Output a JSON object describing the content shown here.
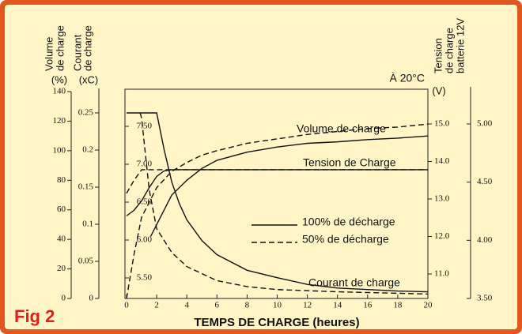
{
  "chart_data": {
    "type": "line",
    "figure_label": "Fig 2",
    "xlabel": "TEMPS DE CHARGE (heures)",
    "annotation_temp": "À 20°C",
    "xlim": [
      0,
      20
    ],
    "xticks": [
      0,
      2,
      4,
      6,
      8,
      10,
      12,
      14,
      16,
      18,
      20
    ],
    "axes": [
      {
        "id": "volume",
        "title_lines": [
          "Volume",
          "de charge"
        ],
        "unit": "(%)",
        "lim": [
          0,
          140
        ],
        "ticks": [
          0,
          20,
          40,
          60,
          80,
          100,
          120,
          140
        ]
      },
      {
        "id": "courant",
        "title_lines": [
          "Courant",
          "de charge"
        ],
        "unit": "(xC)",
        "lim": [
          0,
          0.25
        ],
        "ticks": [
          0,
          0.05,
          0.1,
          0.15,
          0.2,
          0.25
        ]
      },
      {
        "id": "cell",
        "lim": [
          5.5,
          7.5
        ],
        "ticks": [
          {
            "value": 5.5,
            "label": "5.50"
          },
          {
            "value": 6,
            "label": "6.00"
          },
          {
            "value": 6.5,
            "label": "6.50"
          },
          {
            "value": 7,
            "label": "7.00"
          },
          {
            "value": 7.5,
            "label": "7.50"
          }
        ]
      },
      {
        "id": "battery",
        "title_lines": [
          "Tension",
          "de charge",
          "batterie 12V"
        ],
        "unit": "(V)",
        "lim": [
          11,
          15
        ],
        "ticks": [
          {
            "value": 11,
            "label": "11.0"
          },
          {
            "value": 12,
            "label": "12.0"
          },
          {
            "value": 13,
            "label": "13.0"
          },
          {
            "value": 14,
            "label": "14.0"
          },
          {
            "value": 15,
            "label": "15.0"
          }
        ]
      },
      {
        "id": "right",
        "lim": [
          3.5,
          5
        ],
        "ticks": [
          {
            "value": 3.5,
            "label": "3.50"
          },
          {
            "value": 4,
            "label": "4.00"
          },
          {
            "value": 4.5,
            "label": "4.50"
          },
          {
            "value": 5,
            "label": "5.00"
          }
        ]
      }
    ],
    "series": [
      {
        "axis": "volume",
        "style": "solid",
        "x": [
          1.6,
          2,
          3,
          4,
          5,
          6,
          8,
          10,
          12,
          14,
          16,
          18,
          20
        ],
        "y": [
          42,
          50,
          70,
          80,
          88,
          93.5,
          99,
          102.5,
          105,
          106,
          107.5,
          108.5,
          110
        ]
      },
      {
        "axis": "volume",
        "style": "dashed",
        "x": [
          0,
          0.5,
          1,
          2,
          3,
          4,
          5,
          6,
          8,
          10,
          12,
          14,
          16,
          18,
          20
        ],
        "y": [
          0,
          30,
          55,
          75,
          86,
          92,
          97,
          100,
          105,
          108,
          111,
          113,
          115,
          116,
          118
        ]
      },
      {
        "axis": "battery",
        "style": "solid",
        "x": [
          0,
          0.5,
          1,
          1.5,
          2,
          2.5,
          3,
          20
        ],
        "y": [
          12.55,
          12.7,
          12.95,
          13.3,
          13.6,
          13.75,
          13.78,
          13.78
        ]
      },
      {
        "axis": "battery",
        "style": "dashed",
        "x": [
          0,
          0.5,
          1,
          20
        ],
        "y": [
          13.15,
          13.5,
          13.78,
          13.78
        ]
      },
      {
        "axis": "courant",
        "style": "solid",
        "x": [
          0,
          2,
          2.5,
          3,
          3.5,
          4,
          5,
          6,
          8,
          10,
          12,
          14,
          16,
          18,
          20
        ],
        "y": [
          0.25,
          0.25,
          0.2,
          0.157,
          0.128,
          0.106,
          0.078,
          0.059,
          0.038,
          0.028,
          0.019,
          0.014,
          0.012,
          0.01,
          0.009
        ]
      },
      {
        "axis": "courant",
        "style": "dashed",
        "x": [
          0.9,
          1,
          1.5,
          2,
          3,
          4,
          6,
          8,
          10,
          14,
          20
        ],
        "y": [
          0.25,
          0.243,
          0.147,
          0.094,
          0.062,
          0.043,
          0.024,
          0.016,
          0.012,
          0.009,
          0.006
        ]
      }
    ],
    "curve_labels": [
      "Volume de charge",
      "Tension de Charge",
      "Courant de charge"
    ],
    "legend": [
      {
        "label": "100% de décharge",
        "style": "solid"
      },
      {
        "label": "50% de décharge",
        "style": "dashed"
      }
    ]
  }
}
